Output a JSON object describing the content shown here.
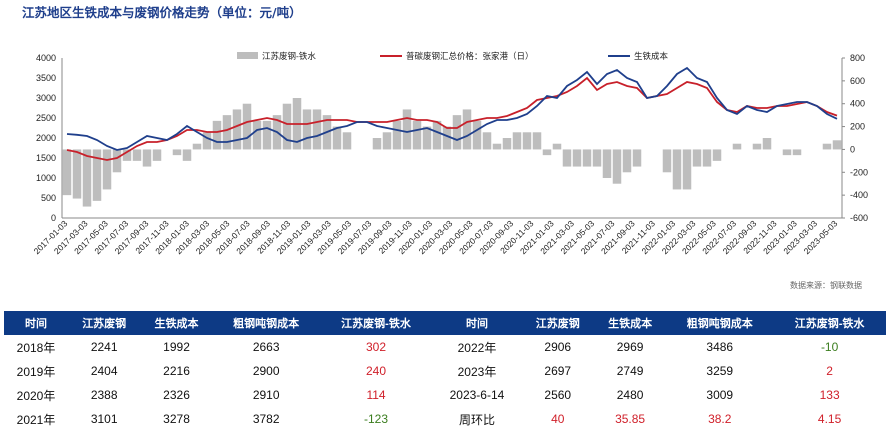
{
  "title": "江苏地区生铁成本与废钢价格走势（单位：元/吨）",
  "source": "数据来源：钢联数据",
  "chart_data": {
    "type": "bar+line",
    "title": "江苏地区生铁成本与废钢价格走势（单位：元/吨）",
    "legend": [
      "江苏废钢-铁水",
      "普碳废钢汇总价格：张家港（日）",
      "生铁成本"
    ],
    "legend_placement": "top",
    "colors": {
      "spread": "#bdbdbd",
      "scrap": "#c8202a",
      "pig_iron": "#1f3f8c"
    },
    "left_axis": {
      "ylim": [
        0,
        4000
      ],
      "ticks": [
        0,
        500,
        1000,
        1500,
        2000,
        2500,
        3000,
        3500,
        4000
      ]
    },
    "right_axis": {
      "ylim": [
        -600,
        800
      ],
      "ticks": [
        -600,
        -400,
        -200,
        0,
        200,
        400,
        600,
        800
      ]
    },
    "x_tick_labels": [
      "2017-01-03",
      "2017-03-03",
      "2017-05-03",
      "2017-07-03",
      "2017-09-03",
      "2017-11-03",
      "2018-01-03",
      "2018-03-03",
      "2018-05-03",
      "2018-07-03",
      "2018-09-03",
      "2018-11-03",
      "2019-01-03",
      "2019-03-03",
      "2019-05-03",
      "2019-07-03",
      "2019-09-03",
      "2019-11-03",
      "2020-01-03",
      "2020-03-03",
      "2020-05-03",
      "2020-07-03",
      "2020-09-03",
      "2020-11-03",
      "2021-01-03",
      "2021-03-03",
      "2021-05-03",
      "2021-07-03",
      "2021-09-03",
      "2021-11-03",
      "2022-01-03",
      "2022-03-03",
      "2022-05-03",
      "2022-07-03",
      "2022-09-03",
      "2022-11-03",
      "2023-01-03",
      "2023-03-03",
      "2023-05-03"
    ],
    "series": [
      {
        "name": "普碳废钢汇总价格：张家港（日）",
        "axis": "left",
        "values": [
          1700,
          1650,
          1550,
          1500,
          1450,
          1500,
          1650,
          1800,
          1900,
          1900,
          1950,
          2050,
          2200,
          2200,
          2150,
          2150,
          2200,
          2300,
          2400,
          2450,
          2500,
          2450,
          2350,
          2350,
          2350,
          2400,
          2450,
          2450,
          2450,
          2400,
          2400,
          2400,
          2400,
          2450,
          2500,
          2450,
          2450,
          2400,
          2250,
          2250,
          2400,
          2450,
          2500,
          2500,
          2550,
          2650,
          2750,
          2950,
          3000,
          3050,
          3150,
          3300,
          3500,
          3200,
          3350,
          3400,
          3300,
          3250,
          3000,
          3050,
          3100,
          3250,
          3400,
          3350,
          3250,
          2900,
          2700,
          2650,
          2800,
          2750,
          2750,
          2800,
          2800,
          2850,
          2900,
          2800,
          2650,
          2560
        ]
      },
      {
        "name": "生铁成本",
        "axis": "left",
        "values": [
          2100,
          2080,
          2050,
          1950,
          1800,
          1700,
          1750,
          1900,
          2050,
          2000,
          1950,
          2100,
          2300,
          2150,
          2000,
          1900,
          1900,
          1950,
          2000,
          2200,
          2250,
          2150,
          1950,
          1900,
          2000,
          2050,
          2150,
          2250,
          2300,
          2400,
          2400,
          2300,
          2250,
          2200,
          2150,
          2200,
          2250,
          2150,
          2050,
          1950,
          2050,
          2200,
          2350,
          2450,
          2450,
          2500,
          2600,
          2800,
          3050,
          3000,
          3300,
          3450,
          3650,
          3350,
          3600,
          3700,
          3500,
          3400,
          3000,
          3050,
          3300,
          3600,
          3750,
          3500,
          3400,
          3000,
          2700,
          2600,
          2800,
          2700,
          2650,
          2800,
          2850,
          2900,
          2900,
          2800,
          2600,
          2480
        ]
      }
    ]
  },
  "table": {
    "headers": [
      "时间",
      "江苏废钢",
      "生铁成本",
      "粗钢吨钢成本",
      "江苏废钢-铁水",
      "时间",
      "江苏废钢",
      "生铁成本",
      "粗钢吨钢成本",
      "江苏废钢-铁水"
    ],
    "rows": [
      [
        "2018年",
        "2241",
        "1992",
        "2663",
        "302",
        "2022年",
        "2906",
        "2969",
        "3486",
        "-10"
      ],
      [
        "2019年",
        "2404",
        "2216",
        "2900",
        "240",
        "2023年",
        "2697",
        "2749",
        "3259",
        "2"
      ],
      [
        "2020年",
        "2388",
        "2326",
        "2910",
        "114",
        "2023-6-14",
        "2560",
        "2480",
        "3009",
        "133"
      ],
      [
        "2021年",
        "3101",
        "3278",
        "3782",
        "-123",
        "周环比",
        "40",
        "35.85",
        "38.2",
        "4.15"
      ]
    ]
  }
}
